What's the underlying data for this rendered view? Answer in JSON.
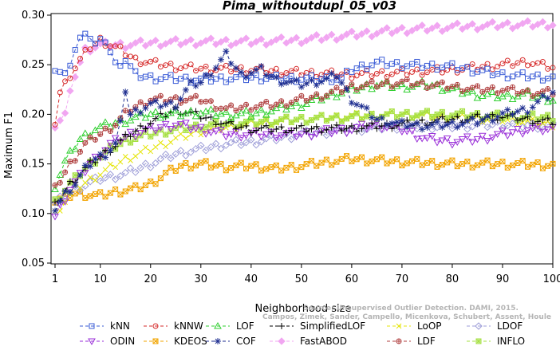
{
  "chart_data": {
    "type": "line",
    "title": "Pima_withoutdupl_05_v03",
    "xlabel": "Neighborhood size",
    "ylabel": "Maximum F1",
    "xlim": [
      1,
      100
    ],
    "ylim": [
      0.05,
      0.3
    ],
    "x_ticks": [
      1,
      10,
      20,
      30,
      40,
      50,
      60,
      70,
      80,
      90,
      100
    ],
    "y_ticks": [
      "0.05",
      "0.10",
      "0.15",
      "0.20",
      "0.25",
      "0.30"
    ],
    "grid": false,
    "legend_position": "bottom",
    "watermark": [
      "Source: Unsupervised Outlier Detection. DAMI, 2015.",
      "Campos, Zimek, Sander, Campello, Micenkova, Schubert, Assent, Houle"
    ],
    "series": [
      {
        "name": "kNN",
        "color": "#3a5bd6",
        "marker": "square",
        "dash": "4,3",
        "keypoints": [
          [
            1,
            0.245
          ],
          [
            3,
            0.238
          ],
          [
            5,
            0.265
          ],
          [
            7,
            0.285
          ],
          [
            9,
            0.27
          ],
          [
            11,
            0.275
          ],
          [
            13,
            0.25
          ],
          [
            15,
            0.255
          ],
          [
            17,
            0.24
          ],
          [
            20,
            0.237
          ],
          [
            30,
            0.235
          ],
          [
            40,
            0.237
          ],
          [
            50,
            0.236
          ],
          [
            58,
            0.236
          ],
          [
            60,
            0.245
          ],
          [
            65,
            0.252
          ],
          [
            70,
            0.25
          ],
          [
            80,
            0.248
          ],
          [
            90,
            0.24
          ],
          [
            100,
            0.237
          ]
        ]
      },
      {
        "name": "kNNW",
        "color": "#d62a2a",
        "marker": "circle",
        "dash": "4,3",
        "keypoints": [
          [
            1,
            0.192
          ],
          [
            2,
            0.222
          ],
          [
            4,
            0.24
          ],
          [
            6,
            0.255
          ],
          [
            8,
            0.268
          ],
          [
            10,
            0.275
          ],
          [
            12,
            0.27
          ],
          [
            14,
            0.265
          ],
          [
            17,
            0.255
          ],
          [
            20,
            0.252
          ],
          [
            25,
            0.248
          ],
          [
            30,
            0.246
          ],
          [
            40,
            0.245
          ],
          [
            50,
            0.242
          ],
          [
            60,
            0.24
          ],
          [
            70,
            0.242
          ],
          [
            80,
            0.245
          ],
          [
            90,
            0.25
          ],
          [
            95,
            0.253
          ],
          [
            100,
            0.247
          ]
        ]
      },
      {
        "name": "LOF",
        "color": "#2fcf2f",
        "marker": "triangle-up",
        "dash": "4,3",
        "keypoints": [
          [
            1,
            0.128
          ],
          [
            3,
            0.152
          ],
          [
            6,
            0.175
          ],
          [
            9,
            0.185
          ],
          [
            12,
            0.19
          ],
          [
            16,
            0.195
          ],
          [
            20,
            0.2
          ],
          [
            25,
            0.2
          ],
          [
            30,
            0.202
          ],
          [
            35,
            0.2
          ],
          [
            40,
            0.2
          ],
          [
            45,
            0.205
          ],
          [
            50,
            0.21
          ],
          [
            55,
            0.218
          ],
          [
            60,
            0.225
          ],
          [
            65,
            0.23
          ],
          [
            70,
            0.228
          ],
          [
            75,
            0.23
          ],
          [
            80,
            0.225
          ],
          [
            85,
            0.22
          ],
          [
            90,
            0.218
          ],
          [
            95,
            0.22
          ],
          [
            100,
            0.215
          ]
        ]
      },
      {
        "name": "SimplifiedLOF",
        "color": "#000000",
        "marker": "plus",
        "dash": "4,3",
        "keypoints": [
          [
            1,
            0.108
          ],
          [
            4,
            0.13
          ],
          [
            8,
            0.15
          ],
          [
            12,
            0.165
          ],
          [
            16,
            0.18
          ],
          [
            20,
            0.192
          ],
          [
            25,
            0.205
          ],
          [
            30,
            0.198
          ],
          [
            35,
            0.19
          ],
          [
            40,
            0.185
          ],
          [
            50,
            0.185
          ],
          [
            60,
            0.186
          ],
          [
            70,
            0.19
          ],
          [
            80,
            0.195
          ],
          [
            90,
            0.198
          ],
          [
            100,
            0.192
          ]
        ]
      },
      {
        "name": "LoOP",
        "color": "#e5e50a",
        "marker": "cross",
        "dash": "4,3",
        "keypoints": [
          [
            1,
            0.1
          ],
          [
            5,
            0.125
          ],
          [
            10,
            0.14
          ],
          [
            15,
            0.155
          ],
          [
            20,
            0.165
          ],
          [
            25,
            0.175
          ],
          [
            30,
            0.183
          ],
          [
            40,
            0.19
          ],
          [
            50,
            0.195
          ],
          [
            60,
            0.198
          ],
          [
            70,
            0.2
          ],
          [
            80,
            0.197
          ],
          [
            90,
            0.195
          ],
          [
            100,
            0.19
          ]
        ]
      },
      {
        "name": "LDOF",
        "color": "#9e9ed8",
        "marker": "diamond",
        "dash": "4,3",
        "keypoints": [
          [
            1,
            0.11
          ],
          [
            5,
            0.125
          ],
          [
            10,
            0.135
          ],
          [
            15,
            0.14
          ],
          [
            20,
            0.15
          ],
          [
            25,
            0.16
          ],
          [
            30,
            0.165
          ],
          [
            35,
            0.17
          ],
          [
            40,
            0.172
          ],
          [
            50,
            0.18
          ],
          [
            60,
            0.185
          ],
          [
            70,
            0.188
          ],
          [
            80,
            0.188
          ],
          [
            90,
            0.19
          ],
          [
            100,
            0.188
          ]
        ]
      },
      {
        "name": "ODIN",
        "color": "#9a2fd8",
        "marker": "triangle-down",
        "dash": "4,3",
        "keypoints": [
          [
            1,
            0.097
          ],
          [
            4,
            0.125
          ],
          [
            8,
            0.15
          ],
          [
            12,
            0.17
          ],
          [
            16,
            0.18
          ],
          [
            20,
            0.185
          ],
          [
            25,
            0.19
          ],
          [
            30,
            0.185
          ],
          [
            35,
            0.18
          ],
          [
            40,
            0.18
          ],
          [
            50,
            0.18
          ],
          [
            60,
            0.185
          ],
          [
            65,
            0.19
          ],
          [
            70,
            0.185
          ],
          [
            75,
            0.175
          ],
          [
            80,
            0.173
          ],
          [
            85,
            0.175
          ],
          [
            90,
            0.18
          ],
          [
            95,
            0.185
          ],
          [
            100,
            0.185
          ]
        ]
      },
      {
        "name": "KDEOS",
        "color": "#f2a400",
        "marker": "square-x",
        "dash": "4,3",
        "keypoints": [
          [
            1,
            0.112
          ],
          [
            5,
            0.12
          ],
          [
            10,
            0.118
          ],
          [
            13,
            0.122
          ],
          [
            17,
            0.125
          ],
          [
            20,
            0.13
          ],
          [
            23,
            0.14
          ],
          [
            26,
            0.148
          ],
          [
            30,
            0.15
          ],
          [
            35,
            0.147
          ],
          [
            40,
            0.148
          ],
          [
            45,
            0.145
          ],
          [
            50,
            0.148
          ],
          [
            55,
            0.152
          ],
          [
            60,
            0.155
          ],
          [
            70,
            0.152
          ],
          [
            80,
            0.15
          ],
          [
            90,
            0.15
          ],
          [
            100,
            0.149
          ]
        ]
      },
      {
        "name": "COF",
        "color": "#1f2f90",
        "marker": "star",
        "dash": "4,3",
        "keypoints": [
          [
            1,
            0.105
          ],
          [
            3,
            0.12
          ],
          [
            5,
            0.13
          ],
          [
            7,
            0.145
          ],
          [
            9,
            0.155
          ],
          [
            11,
            0.16
          ],
          [
            13,
            0.17
          ],
          [
            14,
            0.19
          ],
          [
            15,
            0.225
          ],
          [
            16,
            0.2
          ],
          [
            18,
            0.205
          ],
          [
            20,
            0.21
          ],
          [
            25,
            0.21
          ],
          [
            28,
            0.23
          ],
          [
            30,
            0.232
          ],
          [
            33,
            0.248
          ],
          [
            35,
            0.26
          ],
          [
            38,
            0.24
          ],
          [
            42,
            0.245
          ],
          [
            45,
            0.235
          ],
          [
            50,
            0.23
          ],
          [
            55,
            0.235
          ],
          [
            57,
            0.24
          ],
          [
            60,
            0.215
          ],
          [
            65,
            0.195
          ],
          [
            70,
            0.19
          ],
          [
            75,
            0.188
          ],
          [
            80,
            0.19
          ],
          [
            85,
            0.193
          ],
          [
            90,
            0.2
          ],
          [
            95,
            0.205
          ],
          [
            100,
            0.222
          ]
        ]
      },
      {
        "name": "FastABOD",
        "color": "#f1a6f1",
        "marker": "diamond-filled",
        "dash": "4,3",
        "keypoints": [
          [
            1,
            0.19
          ],
          [
            3,
            0.2
          ],
          [
            5,
            0.24
          ],
          [
            7,
            0.265
          ],
          [
            10,
            0.27
          ],
          [
            15,
            0.27
          ],
          [
            20,
            0.272
          ],
          [
            30,
            0.273
          ],
          [
            40,
            0.273
          ],
          [
            50,
            0.275
          ],
          [
            60,
            0.28
          ],
          [
            70,
            0.285
          ],
          [
            80,
            0.288
          ],
          [
            90,
            0.29
          ],
          [
            100,
            0.291
          ]
        ]
      },
      {
        "name": "LDF",
        "color": "#b04040",
        "marker": "circle-plus",
        "dash": "4,3",
        "keypoints": [
          [
            1,
            0.125
          ],
          [
            4,
            0.15
          ],
          [
            7,
            0.17
          ],
          [
            10,
            0.18
          ],
          [
            13,
            0.19
          ],
          [
            16,
            0.205
          ],
          [
            20,
            0.215
          ],
          [
            25,
            0.215
          ],
          [
            30,
            0.215
          ],
          [
            35,
            0.205
          ],
          [
            40,
            0.208
          ],
          [
            45,
            0.21
          ],
          [
            50,
            0.215
          ],
          [
            55,
            0.22
          ],
          [
            60,
            0.228
          ],
          [
            65,
            0.23
          ],
          [
            70,
            0.232
          ],
          [
            75,
            0.23
          ],
          [
            80,
            0.228
          ],
          [
            85,
            0.225
          ],
          [
            90,
            0.225
          ],
          [
            95,
            0.222
          ],
          [
            100,
            0.222
          ]
        ]
      },
      {
        "name": "INFLO",
        "color": "#a6e043",
        "marker": "square-star",
        "dash": "4,3",
        "keypoints": [
          [
            1,
            0.112
          ],
          [
            4,
            0.13
          ],
          [
            8,
            0.15
          ],
          [
            12,
            0.165
          ],
          [
            16,
            0.175
          ],
          [
            20,
            0.18
          ],
          [
            25,
            0.185
          ],
          [
            30,
            0.188
          ],
          [
            40,
            0.192
          ],
          [
            50,
            0.195
          ],
          [
            60,
            0.197
          ],
          [
            70,
            0.2
          ],
          [
            80,
            0.2
          ],
          [
            90,
            0.198
          ],
          [
            100,
            0.197
          ]
        ]
      }
    ]
  }
}
